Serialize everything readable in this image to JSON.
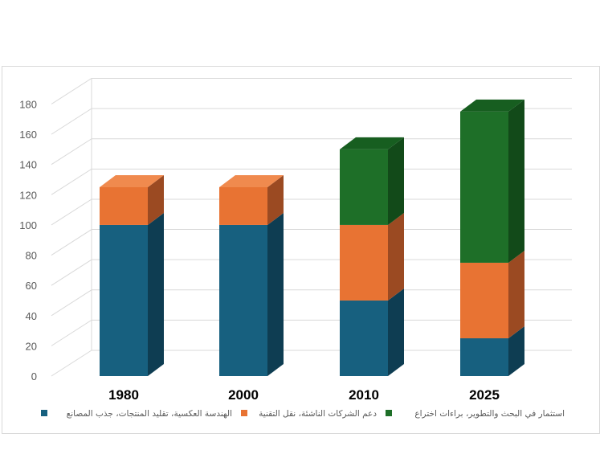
{
  "chart_data": {
    "type": "bar",
    "stacked": true,
    "three_d": true,
    "categories": [
      "1980",
      "2000",
      "2010",
      "2025"
    ],
    "series": [
      {
        "name": "الهندسة العكسية، تقليد المنتجات، جذب المصانع",
        "values": [
          100,
          100,
          50,
          25
        ],
        "color": "#17607f",
        "side": "#0e3d52",
        "top": "#1d7397"
      },
      {
        "name": "دعم الشركات الناشئة، نقل التقنية",
        "values": [
          25,
          25,
          50,
          50
        ],
        "color": "#e87333",
        "side": "#9b4a22",
        "top": "#f08a4e"
      },
      {
        "name": "استثمار في البحث والتطوير، براءات اختراع",
        "values": [
          0,
          0,
          50,
          100
        ],
        "color": "#1e6f28",
        "side": "#124a19",
        "top": "#175e20"
      }
    ],
    "ylim": [
      0,
      180
    ],
    "yticks": [
      0,
      20,
      40,
      60,
      80,
      100,
      120,
      140,
      160,
      180
    ],
    "grid": true,
    "legend_position": "bottom",
    "title": "",
    "xlabel": "",
    "ylabel": ""
  }
}
